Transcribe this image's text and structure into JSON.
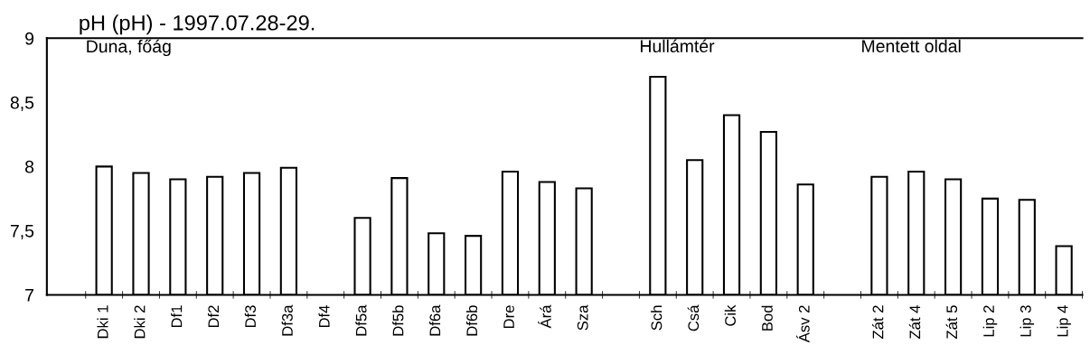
{
  "chart_data": {
    "type": "bar",
    "title": "pH (pH) - 1997.07.28-29.",
    "categories": [
      "Dki 1",
      "Dki 2",
      "Df1",
      "Df2",
      "Df3",
      "Df3a",
      "Df4",
      "Df5a",
      "Df5b",
      "Df6a",
      "Df6b",
      "Dre",
      "Árá",
      "Sza",
      null,
      "Sch",
      "Csá",
      "Cik",
      "Bod",
      "Ásv 2",
      null,
      "Zát 2",
      "Zát 4",
      "Zát 5",
      "Lip 2",
      "Lip 3",
      "Lip 4"
    ],
    "values": [
      8.0,
      7.95,
      7.9,
      7.92,
      7.95,
      7.99,
      null,
      7.6,
      7.91,
      7.48,
      7.46,
      7.96,
      7.88,
      7.83,
      null,
      8.7,
      8.05,
      8.4,
      8.27,
      7.86,
      null,
      7.92,
      7.96,
      7.9,
      7.75,
      7.74,
      7.38
    ],
    "color": "#ffffff",
    "ylim": [
      7,
      9
    ],
    "yticks": [
      7,
      {
        "value": 7.5,
        "label": "7,5"
      },
      8,
      {
        "value": 8.5,
        "label": "8,5"
      },
      9
    ],
    "annotations": [
      "Duna, főág",
      "Hullámtér",
      "Mentett oldal"
    ],
    "grid": false
  }
}
